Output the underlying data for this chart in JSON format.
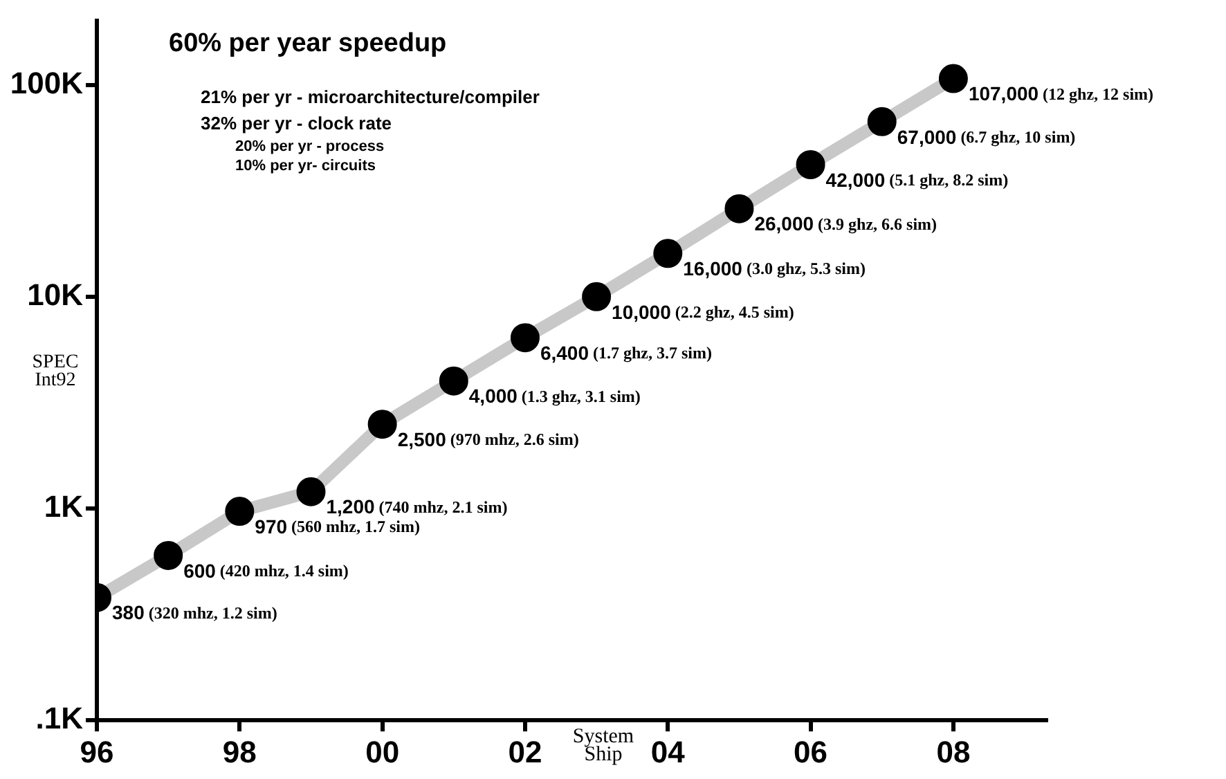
{
  "chart_data": {
    "type": "line",
    "title": "60% per year speedup",
    "annotations": [
      "21% per yr - microarchitecture/compiler",
      "32% per yr - clock rate",
      "20% per yr - process",
      "10% per yr- circuits"
    ],
    "xlabel": "System Ship",
    "ylabel": "SPEC Int92",
    "x": [
      1996,
      1997,
      1998,
      1999,
      2000,
      2001,
      2002,
      2003,
      2004,
      2005,
      2006,
      2007,
      2008
    ],
    "series": [
      {
        "color": "#c8c8c8",
        "values": [
          380,
          600,
          970,
          1200,
          2500,
          4000,
          6400,
          10000,
          16000,
          26000,
          42000,
          67000,
          107000
        ],
        "value_labels": [
          "380 (320 mhz, 1.2 sim)",
          "600 (420 mhz, 1.4 sim)",
          "970 (560 mhz, 1.7 sim)",
          "1,200 (740 mhz, 2.1 sim)",
          "2,500 (970 mhz, 2.6 sim)",
          "4,000 (1.3 ghz, 3.1 sim)",
          "6,400 (1.7 ghz, 3.7 sim)",
          "10,000 (2.2 ghz, 4.5 sim)",
          "16,000 (3.0 ghz, 5.3 sim)",
          "26,000 (3.9 ghz, 6.6 sim)",
          "42,000 (5.1 ghz, 8.2 sim)",
          "67,000 (6.7 ghz, 10 sim)",
          "107,000 (12 ghz, 12 sim)"
        ]
      }
    ],
    "xlim": [
      1996,
      2009.3
    ],
    "xticks": [
      {
        "value": 1996,
        "label": "96"
      },
      {
        "value": 1998,
        "label": "98"
      },
      {
        "value": 2000,
        "label": "00"
      },
      {
        "value": 2002,
        "label": "02"
      },
      {
        "value": 2004,
        "label": "04"
      },
      {
        "value": 2006,
        "label": "06"
      },
      {
        "value": 2008,
        "label": "08"
      }
    ],
    "ylim": [
      100,
      200000
    ],
    "yticks": [
      {
        "value": 100,
        "label": ".1K"
      },
      {
        "value": 1000,
        "label": "1K"
      },
      {
        "value": 10000,
        "label": "10K"
      },
      {
        "value": 100000,
        "label": "100K"
      }
    ],
    "log": "y",
    "grid": false,
    "legend": false,
    "marker": "circle",
    "line_style": "solid"
  }
}
